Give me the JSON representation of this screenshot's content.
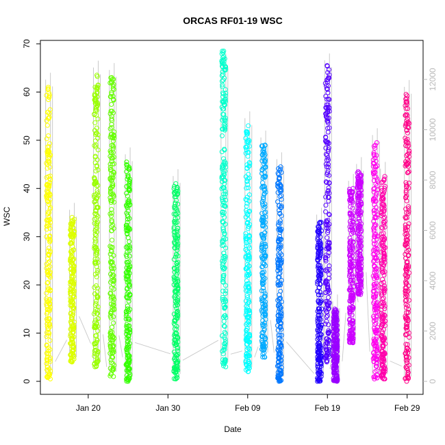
{
  "chart_data": {
    "type": "scatter",
    "title": "ORCAS RF01-19 WSC",
    "xlabel": "Date",
    "ylabel": "WSC",
    "ylim": [
      0,
      70
    ],
    "y_ticks": [
      0,
      10,
      20,
      30,
      40,
      50,
      60,
      70
    ],
    "x_ticks": [
      "Jan 20",
      "Jan 30",
      "Feb 09",
      "Feb 19",
      "Feb 29"
    ],
    "xlim": [
      "2016-01-14",
      "2016-03-02"
    ],
    "y2lim": [
      0,
      13000
    ],
    "y2_ticks": [
      0,
      2000,
      4000,
      6000,
      8000,
      10000,
      12000
    ],
    "y2_color": "#b8b8b8",
    "marker": "open-circle",
    "series": [
      {
        "date": "2016-01-15",
        "color": "#FFFF00",
        "range": [
          0.5,
          61
        ]
      },
      {
        "date": "2016-01-18",
        "color": "#DDFF00",
        "range": [
          4,
          34
        ]
      },
      {
        "date": "2016-01-21",
        "color": "#99FF00",
        "range": [
          3,
          63.5
        ]
      },
      {
        "date": "2016-01-23",
        "color": "#66FF00",
        "range": [
          1,
          63
        ]
      },
      {
        "date": "2016-01-25",
        "color": "#33FF00",
        "range": [
          0,
          45.5
        ]
      },
      {
        "date": "2016-01-31",
        "color": "#00FF66",
        "range": [
          0.5,
          41
        ]
      },
      {
        "date": "2016-02-06",
        "color": "#00FFCC",
        "range": [
          3,
          68.5
        ]
      },
      {
        "date": "2016-02-09",
        "color": "#00FFFF",
        "range": [
          2,
          53
        ]
      },
      {
        "date": "2016-02-11",
        "color": "#00AAFF",
        "range": [
          5,
          49
        ]
      },
      {
        "date": "2016-02-13",
        "color": "#0077FF",
        "range": [
          0,
          44.5
        ]
      },
      {
        "date": "2016-02-18",
        "color": "#2200FF",
        "range": [
          0,
          33
        ]
      },
      {
        "date": "2016-02-19",
        "color": "#5500FF",
        "range": [
          4,
          65.5
        ]
      },
      {
        "date": "2016-02-20",
        "color": "#9900FF",
        "range": [
          0,
          15
        ]
      },
      {
        "date": "2016-02-22",
        "color": "#CC00FF",
        "range": [
          8,
          40
        ]
      },
      {
        "date": "2016-02-23",
        "color": "#CC00FF",
        "range": [
          18,
          43.5
        ]
      },
      {
        "date": "2016-02-25",
        "color": "#FF00EE",
        "range": [
          0.5,
          49.5
        ]
      },
      {
        "date": "2016-02-26",
        "color": "#FF00AA",
        "range": [
          0.5,
          42.5
        ]
      },
      {
        "date": "2016-02-29",
        "color": "#FF0088",
        "range": [
          0,
          59.5
        ]
      }
    ]
  }
}
